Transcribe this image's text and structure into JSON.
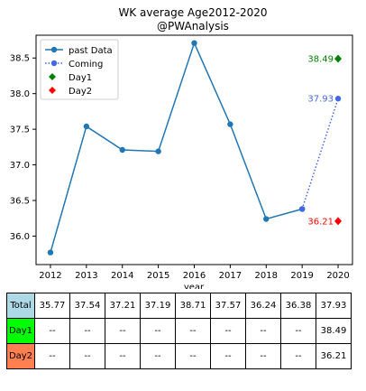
{
  "chart_data": {
    "type": "line",
    "title": "WK average Age2012-2020",
    "subtitle": "@PWAnalysis",
    "xlabel": "year",
    "ylabel": "",
    "x": [
      2012,
      2013,
      2014,
      2015,
      2016,
      2017,
      2018,
      2019,
      2020
    ],
    "xlim": [
      2011.6,
      2020.4
    ],
    "ylim": [
      35.6,
      38.82
    ],
    "yticks": [
      36.0,
      36.5,
      37.0,
      37.5,
      38.0,
      38.5
    ],
    "grid": false,
    "legend_position": "top-left",
    "series": [
      {
        "name": "past Data",
        "style": "solid-line-circle",
        "color": "#1f77b4",
        "points": [
          [
            2012,
            35.77
          ],
          [
            2013,
            37.54
          ],
          [
            2014,
            37.21
          ],
          [
            2015,
            37.19
          ],
          [
            2016,
            38.71
          ],
          [
            2017,
            37.57
          ],
          [
            2018,
            36.24
          ],
          [
            2019,
            36.38
          ]
        ]
      },
      {
        "name": "Coming",
        "style": "dotted-line-circle",
        "color": "#4169e1",
        "points": [
          [
            2019,
            36.38
          ],
          [
            2020,
            37.93
          ]
        ]
      },
      {
        "name": "Day1",
        "style": "diamond",
        "color": "#008000",
        "points": [
          [
            2020,
            38.49
          ]
        ]
      },
      {
        "name": "Day2",
        "style": "diamond",
        "color": "#ff0000",
        "points": [
          [
            2020,
            36.21
          ]
        ]
      }
    ],
    "annotations": [
      {
        "text": "38.49",
        "x": 2020,
        "y": 38.49,
        "color": "#008000"
      },
      {
        "text": "37.93",
        "x": 2020,
        "y": 37.93,
        "color": "#4169e1"
      },
      {
        "text": "36.21",
        "x": 2020,
        "y": 36.21,
        "color": "#ff0000"
      }
    ]
  },
  "table": {
    "rows": [
      {
        "label": "Total",
        "color": "#add8e6",
        "cells": [
          "35.77",
          "37.54",
          "37.21",
          "37.19",
          "38.71",
          "37.57",
          "36.24",
          "36.38",
          "37.93"
        ]
      },
      {
        "label": "Day1",
        "color": "#00ff00",
        "cells": [
          "--",
          "--",
          "--",
          "--",
          "--",
          "--",
          "--",
          "--",
          "38.49"
        ]
      },
      {
        "label": "Day2",
        "color": "#ff7f50",
        "cells": [
          "--",
          "--",
          "--",
          "--",
          "--",
          "--",
          "--",
          "--",
          "36.21"
        ]
      }
    ]
  }
}
